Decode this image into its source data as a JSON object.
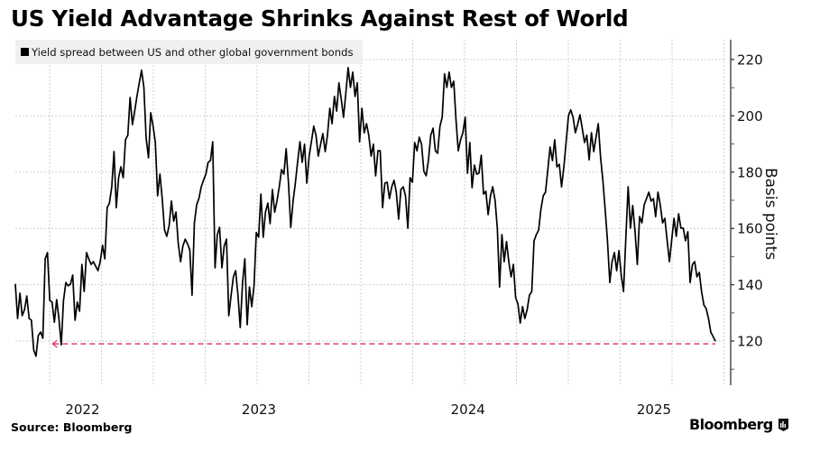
{
  "header": {
    "title": "US Yield Advantage Shrinks Against Rest of World"
  },
  "legend": {
    "label": "Yield spread between US and other global government bonds",
    "swatch_color": "#000000"
  },
  "footer": {
    "source": "Source: Bloomberg",
    "brand": "Bloomberg",
    "brand_icon": "bloomberg-chart-icon"
  },
  "chart_data": {
    "type": "line",
    "title": "US Yield Advantage Shrinks Against Rest of World",
    "xlabel": "",
    "ylabel": "Basis points",
    "ylim": [
      104,
      227
    ],
    "xlim": [
      2021.72,
      2025.45
    ],
    "y_ticks": [
      120,
      140,
      160,
      180,
      200,
      220
    ],
    "y_tick_labels": [
      "120",
      "140",
      "160",
      "180",
      "200",
      "220"
    ],
    "y_minor_ticks": [
      110,
      130,
      150,
      170,
      190,
      210
    ],
    "x_tick_labels": [
      {
        "label": "2022",
        "x": 2022.07
      },
      {
        "label": "2023",
        "x": 2022.99
      },
      {
        "label": "2024",
        "x": 2024.08
      },
      {
        "label": "2025",
        "x": 2025.05
      }
    ],
    "grid": true,
    "legend_position": "top-left",
    "colors": {
      "line": "#000000",
      "reference": "#d9436b",
      "grid": "#cfcfcf"
    },
    "reference_line": {
      "value": 119,
      "x_start": 2021.91,
      "x_end": 2025.37,
      "style": "dashed-arrow"
    },
    "series": [
      {
        "name": "Yield spread between US and other global government bonds",
        "x_start": 2021.72,
        "x_end": 2025.37,
        "values": [
          140.2,
          128.0,
          137.0,
          129.0,
          131.2,
          136.0,
          128.0,
          127.4,
          116.8,
          114.6,
          121.9,
          123.2,
          121.0,
          149.2,
          151.4,
          134.4,
          133.8,
          126.7,
          134.7,
          128.0,
          118.7,
          134.4,
          140.8,
          139.6,
          140.2,
          143.4,
          127.4,
          133.8,
          130.6,
          147.2,
          137.6,
          151.4,
          149.2,
          147.2,
          148.2,
          146.6,
          145.0,
          148.2,
          154.0,
          149.2,
          167.4,
          169.0,
          174.8,
          187.3,
          167.4,
          178.0,
          181.9,
          178.0,
          191.5,
          193.1,
          206.5,
          196.9,
          201.7,
          206.9,
          211.7,
          216.2,
          210.1,
          192.1,
          185.1,
          201.1,
          196.3,
          190.5,
          171.6,
          179.3,
          170.6,
          159.4,
          157.2,
          161.0,
          169.7,
          162.6,
          165.8,
          154.6,
          148.2,
          153.7,
          156.2,
          154.6,
          152.4,
          136.3,
          162.0,
          168.4,
          170.6,
          174.8,
          177.1,
          179.3,
          183.5,
          184.1,
          190.8,
          146.0,
          157.8,
          160.4,
          146.0,
          153.7,
          156.2,
          129.0,
          136.3,
          142.8,
          145.0,
          136.3,
          124.8,
          140.8,
          149.2,
          125.8,
          139.2,
          132.2,
          139.6,
          158.5,
          156.9,
          172.2,
          156.9,
          165.8,
          169.0,
          161.7,
          173.8,
          165.8,
          169.7,
          174.8,
          180.9,
          179.3,
          188.3,
          176.1,
          160.4,
          169.7,
          176.1,
          183.5,
          190.8,
          183.5,
          189.9,
          176.1,
          185.7,
          190.8,
          196.3,
          193.1,
          185.7,
          189.9,
          193.7,
          187.3,
          193.1,
          202.7,
          197.2,
          206.9,
          201.7,
          211.7,
          205.9,
          199.5,
          208.1,
          217.1,
          210.1,
          215.5,
          206.9,
          211.7,
          190.8,
          202.7,
          194.0,
          197.2,
          193.1,
          185.7,
          189.9,
          178.7,
          187.6,
          187.6,
          167.4,
          176.1,
          176.4,
          170.6,
          174.8,
          177.1,
          172.9,
          163.3,
          173.8,
          174.8,
          171.6,
          160.1,
          178.0,
          176.4,
          190.5,
          187.6,
          192.4,
          189.9,
          180.3,
          178.7,
          184.4,
          193.1,
          195.6,
          187.6,
          186.7,
          196.3,
          199.5,
          214.9,
          210.1,
          215.5,
          210.1,
          212.3,
          198.5,
          187.6,
          191.5,
          194.0,
          199.5,
          179.6,
          190.5,
          174.5,
          182.5,
          179.3,
          179.6,
          186.0,
          172.2,
          173.2,
          164.9,
          171.6,
          174.8,
          170.0,
          160.1,
          139.2,
          157.8,
          148.2,
          155.3,
          148.2,
          142.8,
          147.2,
          135.4,
          133.1,
          126.4,
          132.2,
          128.0,
          131.2,
          136.3,
          137.6,
          155.6,
          157.8,
          159.4,
          166.8,
          171.6,
          172.9,
          180.9,
          188.9,
          184.1,
          191.5,
          181.9,
          182.8,
          174.8,
          181.9,
          190.8,
          200.1,
          202.1,
          199.5,
          194.0,
          196.9,
          200.4,
          195.6,
          190.5,
          193.1,
          184.4,
          194.0,
          187.3,
          192.4,
          197.2,
          185.1,
          177.1,
          166.5,
          155.6,
          140.8,
          148.2,
          151.4,
          145.0,
          152.1,
          143.4,
          137.6,
          156.9,
          174.8,
          160.1,
          168.1,
          158.8,
          147.2,
          164.2,
          162.0,
          168.4,
          170.6,
          172.9,
          169.7,
          170.6,
          164.2,
          172.9,
          168.4,
          162.0,
          163.6,
          155.6,
          148.2,
          156.2,
          163.6,
          157.2,
          165.2,
          160.1,
          160.1,
          155.6,
          158.8,
          140.8,
          147.2,
          148.2,
          142.8,
          144.4,
          137.6,
          132.8,
          131.5,
          128.0,
          123.2,
          121.6,
          120.0
        ]
      }
    ]
  }
}
